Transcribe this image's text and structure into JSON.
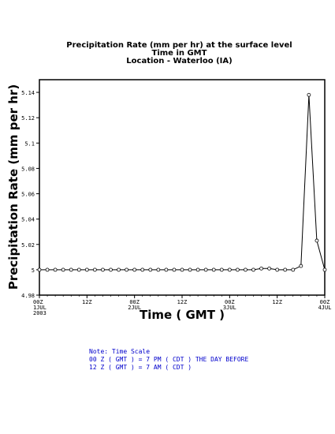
{
  "title_lines": [
    "Precipitation Rate (mm per hr) at the surface level",
    "Time in GMT",
    "Location - Waterloo (IA)"
  ],
  "notes": [
    "Note: Time Scale",
    "00 Z ( GMT ) = 7 PM ( CDT ) THE DAY BEFORE",
    "12 Z ( GMT ) = 7 AM ( CDT )"
  ],
  "chart_data": {
    "type": "line",
    "xlabel": "Time ( GMT )",
    "ylabel": "Precipitation Rate (mm per hr)",
    "ylim": [
      4.98,
      5.15
    ],
    "yticks": [
      4.98,
      5,
      5.02,
      5.04,
      5.06,
      5.08,
      5.1,
      5.12,
      5.14
    ],
    "ytick_labels": [
      "4.98",
      "5",
      "5.02",
      "5.04",
      "5.06",
      "5.08",
      "5.1",
      "5.12",
      "5.14"
    ],
    "x_hours_range": [
      0,
      72
    ],
    "xticks": [
      {
        "hour": 0,
        "lines": [
          "00Z",
          "1JUL",
          "2003"
        ]
      },
      {
        "hour": 12,
        "lines": [
          "12Z"
        ]
      },
      {
        "hour": 24,
        "lines": [
          "00Z",
          "2JUL"
        ]
      },
      {
        "hour": 36,
        "lines": [
          "12Z"
        ]
      },
      {
        "hour": 48,
        "lines": [
          "00Z",
          "3JUL"
        ]
      },
      {
        "hour": 60,
        "lines": [
          "12Z"
        ]
      },
      {
        "hour": 72,
        "lines": [
          "00Z",
          "4JUL"
        ]
      }
    ],
    "grid": false,
    "marker": "open-circle",
    "series": [
      {
        "x": [
          0,
          2,
          4,
          6,
          8,
          10,
          12,
          14,
          16,
          18,
          20,
          22,
          24,
          26,
          28,
          30,
          32,
          34,
          36,
          38,
          40,
          42,
          44,
          46,
          48,
          50,
          52,
          54,
          56,
          58,
          60,
          62,
          64,
          66,
          68,
          70,
          72
        ],
        "y": [
          5,
          5,
          5,
          5,
          5,
          5,
          5,
          5,
          5,
          5,
          5,
          5,
          5,
          5,
          5,
          5,
          5,
          5,
          5,
          5,
          5,
          5,
          5,
          5,
          5,
          5,
          5,
          5,
          5.001,
          5.001,
          5,
          5,
          5,
          5.003,
          5.138,
          5.023,
          5
        ]
      }
    ]
  }
}
